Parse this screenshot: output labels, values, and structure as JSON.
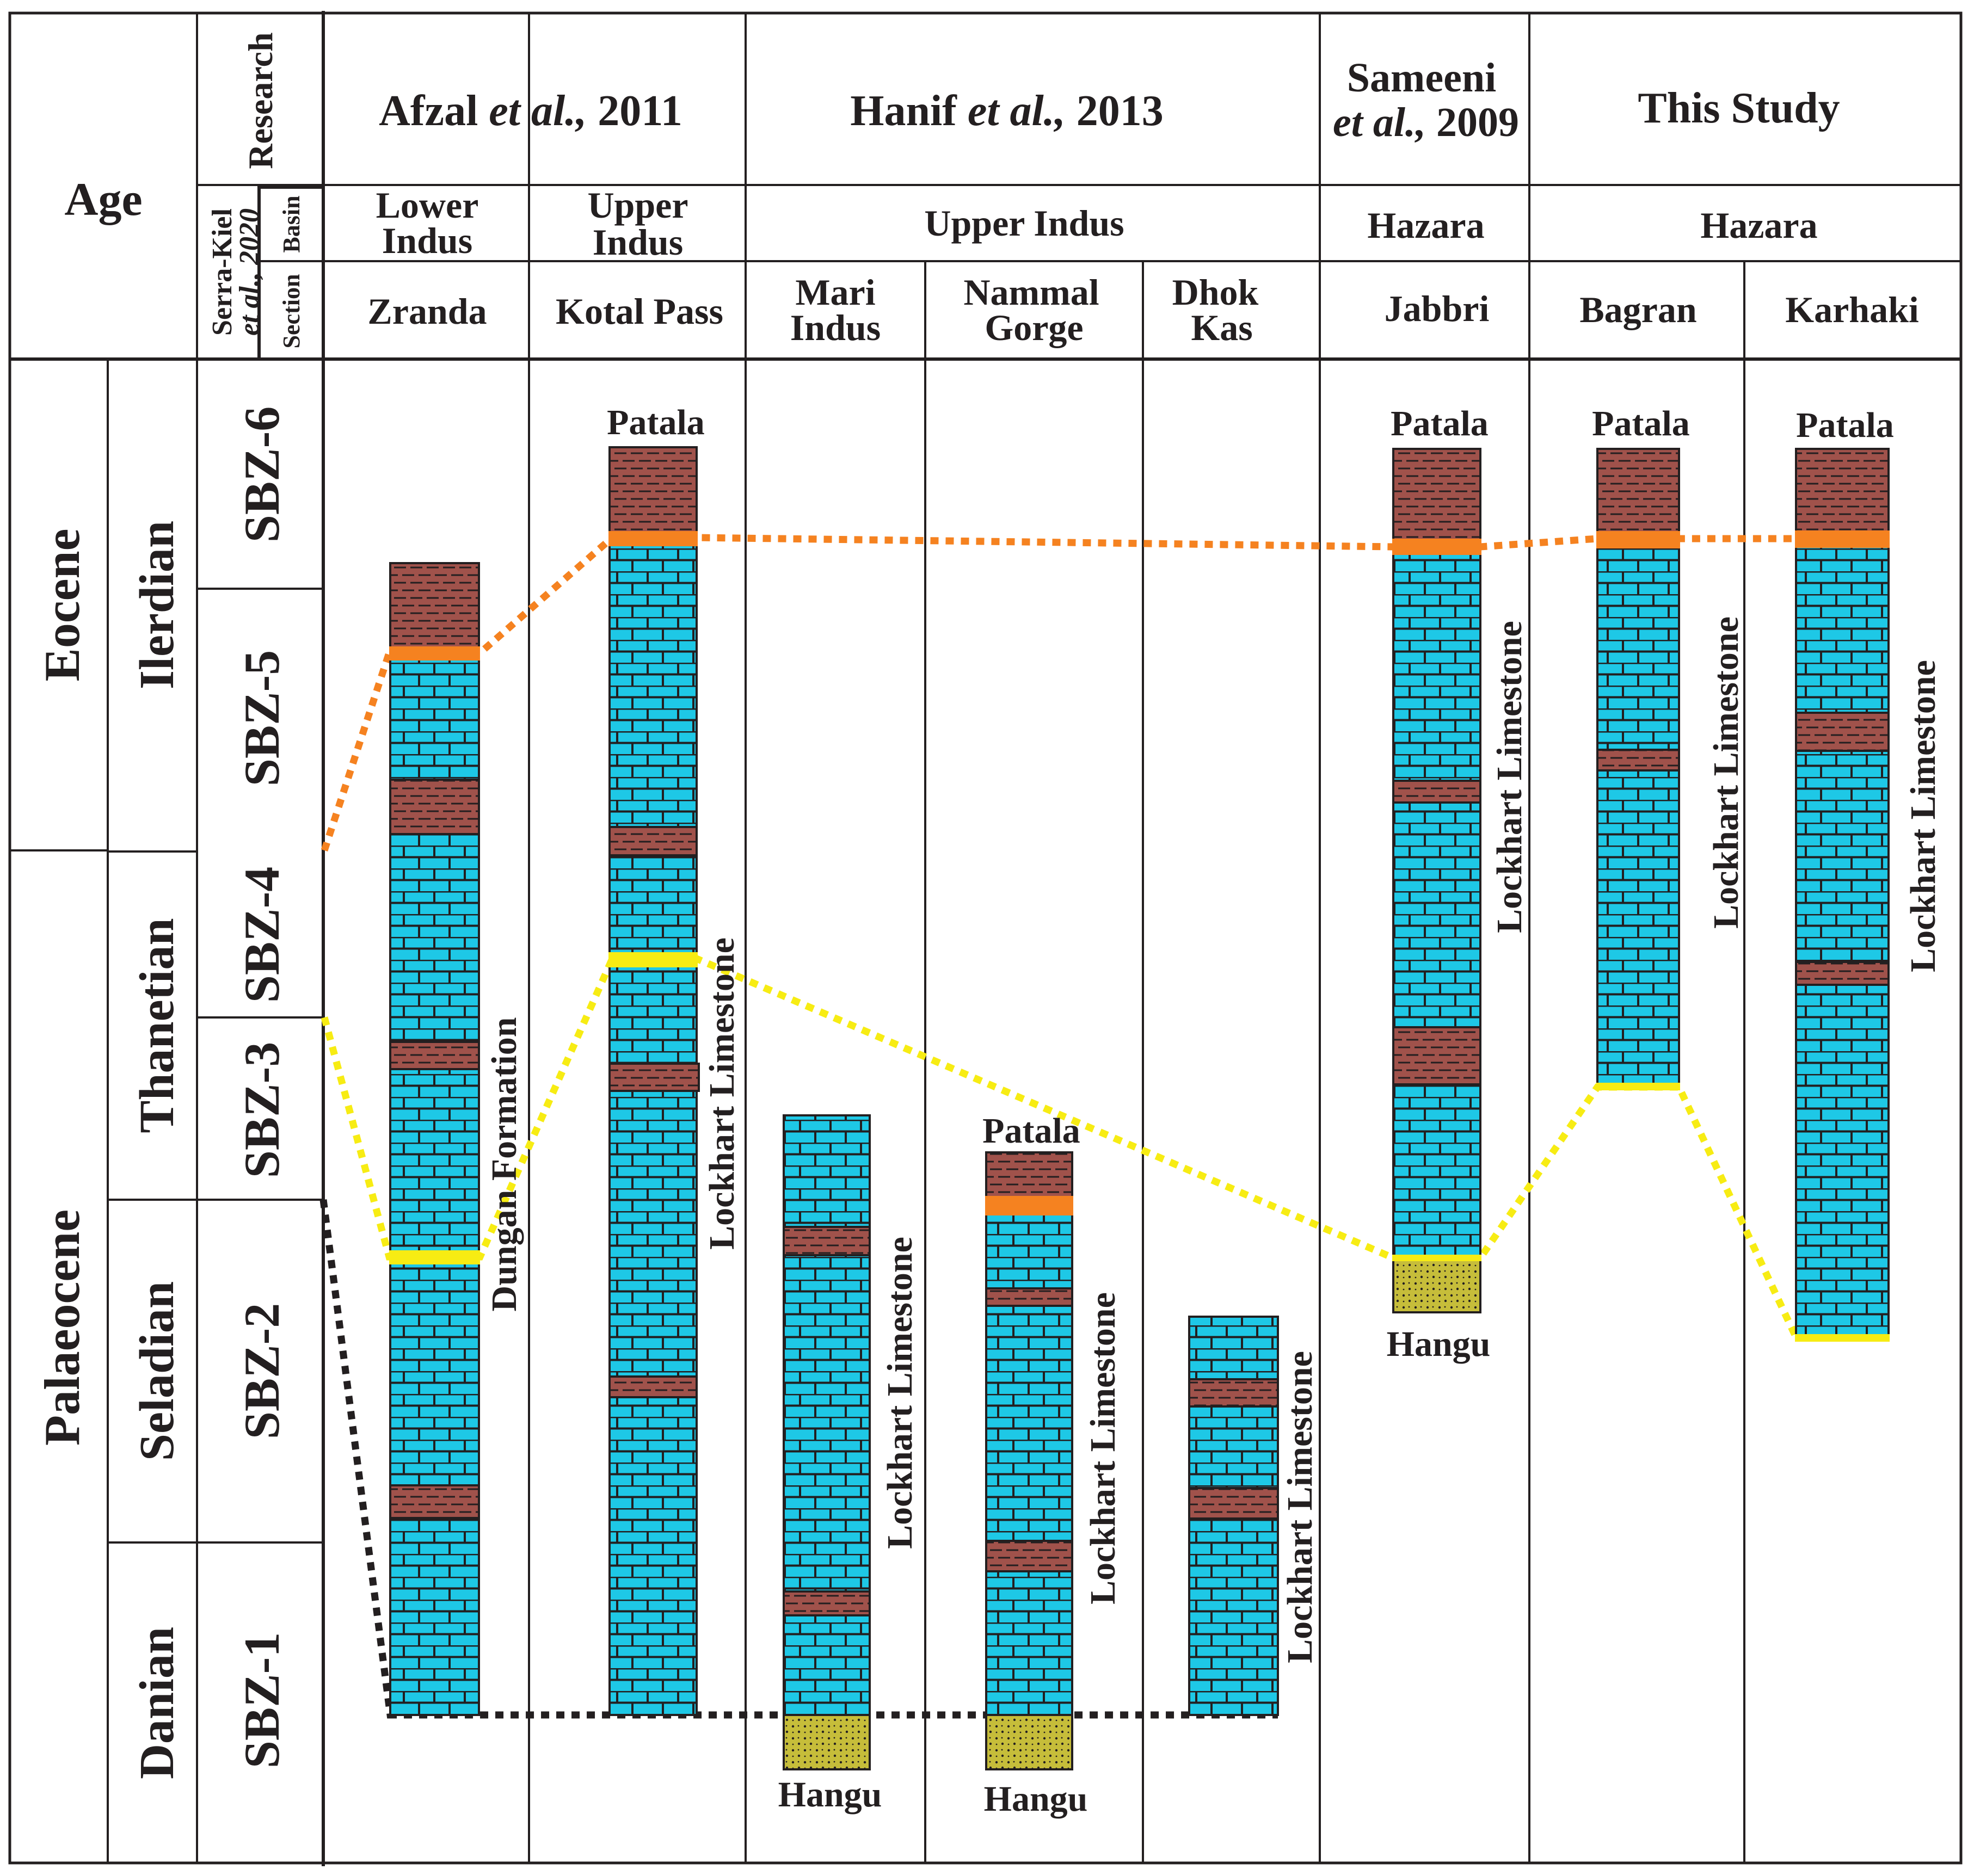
{
  "header": {
    "age": "Age",
    "research": "Research",
    "serra_kiel_line1": "Serra-Kiel",
    "serra_kiel_line2": "et al., 2020",
    "basin": "Basin",
    "section": "Section"
  },
  "studies": [
    {
      "authors": "Afzal",
      "etal": "et al.,",
      "year": "2011"
    },
    {
      "authors": "Hanif",
      "etal": "et al.,",
      "year": "2013"
    },
    {
      "line1": "Sameeni",
      "etal": "et al.,",
      "year": "2009"
    },
    {
      "label": "This Study"
    }
  ],
  "basins": [
    {
      "line1": "Lower",
      "line2": "Indus"
    },
    {
      "line1": "Upper",
      "line2": "Indus"
    },
    {
      "label": "Upper Indus"
    },
    {
      "label": "Hazara"
    },
    {
      "label": "Hazara"
    }
  ],
  "sections": [
    {
      "line1": "Zranda"
    },
    {
      "line1": "Kotal Pass"
    },
    {
      "line1": "Mari",
      "line2": "Indus"
    },
    {
      "line1": "Nammal",
      "line2": "Gorge"
    },
    {
      "line1": "Dhok",
      "line2": "Kas"
    },
    {
      "line1": "Jabbri"
    },
    {
      "line1": "Bagran"
    },
    {
      "line1": "Karhaki"
    }
  ],
  "epochs": [
    "Eocene",
    "Palaeocene"
  ],
  "stages": [
    "Ilerdian",
    "Thanetian",
    "Seladian",
    "Danian"
  ],
  "zones": [
    "SBZ-6",
    "SBZ-5",
    "SBZ-4",
    "SBZ-3",
    "SBZ-2",
    "SBZ-1"
  ],
  "formations": {
    "patala": "Patala",
    "hangu": "Hangu",
    "lockhart": "Lockhart Limestone",
    "dungan": "Dungan Formation"
  },
  "legend_colors": {
    "limestone": "#1ec8e6",
    "shale": "#a0524b",
    "sandstone": "#c6bd3a",
    "correlation_top": "#f58220",
    "correlation_mid": "#f7ec13",
    "correlation_base": "#231f20"
  }
}
